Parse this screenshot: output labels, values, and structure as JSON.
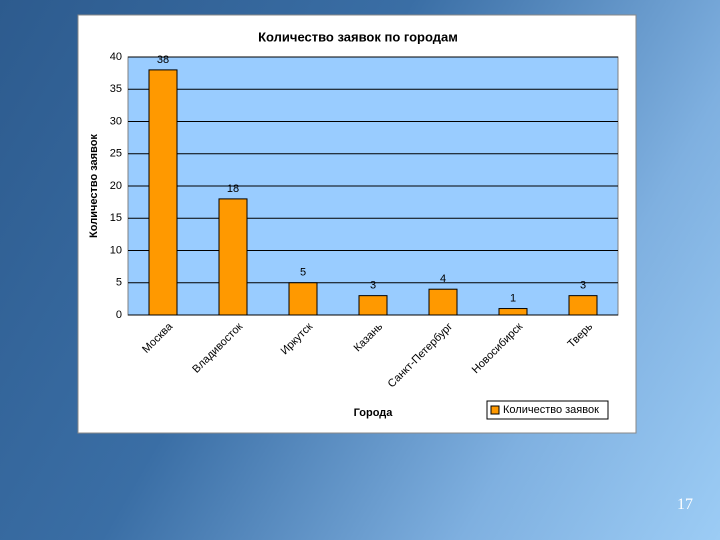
{
  "slide_number": "17",
  "chart_data": {
    "type": "bar",
    "title": "Количество заявок по городам",
    "x_label": "Города",
    "y_label": "Количество заявок",
    "categories": [
      "Москва",
      "Владивосток",
      "Иркутск",
      "Казань",
      "Санкт-Петербург",
      "Новосибирск",
      "Тверь"
    ],
    "series": [
      {
        "name": "Количество заявок",
        "color": "#ff9900",
        "values": [
          38,
          18,
          5,
          3,
          4,
          1,
          3
        ]
      }
    ],
    "ylim": [
      0,
      40
    ],
    "yticks": [
      0,
      5,
      10,
      15,
      20,
      25,
      30,
      35,
      40
    ],
    "grid": true,
    "legend": "bottom-right"
  }
}
